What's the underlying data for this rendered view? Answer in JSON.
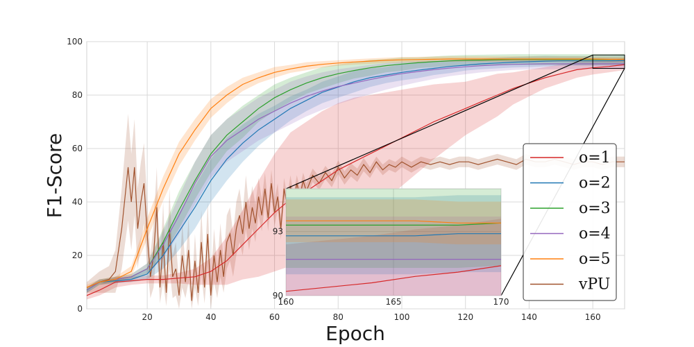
{
  "chart_data": {
    "type": "line",
    "xlabel": "Epoch",
    "ylabel": "F1-Score",
    "xlim": [
      1,
      170
    ],
    "ylim": [
      0,
      100
    ],
    "xticks": [
      20,
      40,
      60,
      80,
      100,
      120,
      140,
      160
    ],
    "yticks": [
      0,
      20,
      40,
      60,
      80,
      100
    ],
    "grid": true,
    "legend_position": "lower-right",
    "series": [
      {
        "name": "o=1",
        "color": "#d62728",
        "x": [
          1,
          5,
          10,
          15,
          20,
          25,
          30,
          35,
          40,
          45,
          50,
          55,
          60,
          65,
          70,
          75,
          80,
          85,
          90,
          95,
          100,
          105,
          110,
          115,
          120,
          125,
          130,
          135,
          140,
          145,
          150,
          155,
          160,
          165,
          170
        ],
        "y": [
          5,
          7,
          10,
          10.5,
          11,
          11,
          11.5,
          12,
          14,
          18,
          24,
          30,
          36,
          41,
          44,
          48,
          52,
          55,
          58,
          61,
          64,
          67,
          70,
          72.5,
          75,
          77.5,
          80,
          82.5,
          84.5,
          86.5,
          88,
          89.5,
          90.2,
          90.7,
          91.4
        ],
        "band": [
          1.5,
          2,
          2,
          1.5,
          1.5,
          1.5,
          2,
          3,
          5,
          9,
          13,
          18,
          22,
          25,
          26,
          26,
          25,
          24,
          22,
          20,
          18,
          16,
          14,
          12,
          10,
          9,
          8,
          6,
          5,
          4,
          3.5,
          3,
          2.5,
          2.2,
          2
        ]
      },
      {
        "name": "o=2",
        "color": "#1f77b4",
        "x": [
          1,
          5,
          10,
          15,
          20,
          25,
          30,
          35,
          40,
          45,
          50,
          55,
          60,
          65,
          70,
          75,
          80,
          85,
          90,
          95,
          100,
          105,
          110,
          115,
          120,
          125,
          130,
          135,
          140,
          145,
          150,
          155,
          160,
          165,
          170
        ],
        "y": [
          7,
          10,
          10.5,
          11,
          13,
          20,
          29,
          38,
          48,
          56,
          62,
          67,
          71,
          75,
          78,
          81,
          83,
          85,
          86.5,
          87.5,
          88.5,
          89.3,
          90,
          90.7,
          91.2,
          91.7,
          92,
          92.3,
          92.5,
          92.7,
          92.8,
          92.8,
          92.8,
          92.8,
          92.9
        ],
        "band": [
          1,
          1,
          1,
          1,
          2,
          5,
          7,
          8,
          8,
          8,
          7,
          6,
          5,
          4.5,
          4,
          4,
          4,
          4,
          3.5,
          3,
          3,
          3,
          2.5,
          2.5,
          2,
          2,
          2,
          2,
          2,
          2,
          1.8,
          1.8,
          1.8,
          1.8,
          1.8
        ]
      },
      {
        "name": "o=3",
        "color": "#2ca02c",
        "x": [
          1,
          5,
          10,
          15,
          20,
          25,
          30,
          35,
          40,
          45,
          50,
          55,
          60,
          65,
          70,
          75,
          80,
          85,
          90,
          95,
          100,
          105,
          110,
          115,
          120,
          125,
          130,
          135,
          140,
          145,
          150,
          155,
          160,
          165,
          170
        ],
        "y": [
          7,
          10,
          11,
          12,
          15,
          25,
          37,
          48,
          58,
          65,
          70,
          75,
          79,
          82,
          84.5,
          86.5,
          88,
          89.2,
          90.2,
          91,
          91.6,
          92.1,
          92.5,
          92.8,
          93,
          93.1,
          93.2,
          93.3,
          93.3,
          93.3,
          93.3,
          93.3,
          93.3,
          93.3,
          93.4
        ],
        "band": [
          1,
          1,
          1,
          1,
          2,
          5,
          7,
          7,
          7,
          6,
          6,
          5,
          5,
          4.5,
          4,
          4,
          3.5,
          3,
          3,
          2.5,
          2.5,
          2,
          2,
          2,
          2,
          2,
          2,
          2,
          2,
          2,
          2,
          2,
          2,
          2,
          2
        ]
      },
      {
        "name": "o=4",
        "color": "#9467bd",
        "x": [
          1,
          5,
          10,
          15,
          20,
          25,
          30,
          35,
          40,
          45,
          50,
          55,
          60,
          65,
          70,
          75,
          80,
          85,
          90,
          95,
          100,
          105,
          110,
          115,
          120,
          125,
          130,
          135,
          140,
          145,
          150,
          155,
          160,
          165,
          170
        ],
        "y": [
          7,
          10,
          11,
          12,
          15,
          24,
          35,
          47,
          57,
          63,
          67,
          71,
          74,
          77,
          79.5,
          81.5,
          83.2,
          84.5,
          85.8,
          87,
          88,
          88.8,
          89.5,
          90.1,
          90.6,
          91,
          91.3,
          91.5,
          91.6,
          91.7,
          91.7,
          91.7,
          91.7,
          91.7,
          91.7
        ],
        "band": [
          1,
          1,
          1,
          1,
          2,
          5,
          7,
          8,
          8,
          8,
          8,
          8,
          8,
          8,
          7.5,
          7,
          6.5,
          6,
          5.5,
          5,
          4.5,
          4,
          3.5,
          3,
          2.8,
          2.5,
          2.3,
          2.1,
          2,
          2,
          2,
          2,
          2,
          2,
          2
        ]
      },
      {
        "name": "o=5",
        "color": "#ff7f0e",
        "x": [
          1,
          5,
          10,
          15,
          20,
          25,
          30,
          35,
          40,
          45,
          50,
          55,
          60,
          65,
          70,
          75,
          80,
          85,
          90,
          95,
          100,
          105,
          110,
          115,
          120,
          125,
          130,
          135,
          140,
          145,
          150,
          155,
          160,
          165,
          170
        ],
        "y": [
          8,
          10,
          11,
          14,
          30,
          45,
          58,
          67,
          75,
          80,
          84,
          86.5,
          88.5,
          89.8,
          90.8,
          91.5,
          92,
          92.4,
          92.7,
          93,
          93.2,
          93.3,
          93.4,
          93.5,
          93.5,
          93.5,
          93.5,
          93.5,
          93.5,
          93.5,
          93.5,
          93.5,
          93.5,
          93.4,
          93.4
        ],
        "band": [
          1,
          1,
          1,
          2,
          4,
          4.5,
          4.5,
          4,
          3.5,
          3,
          2.5,
          2,
          2,
          1.5,
          1.5,
          1.2,
          1,
          1,
          1,
          1,
          1,
          1,
          1,
          1,
          1,
          1,
          1,
          1,
          1,
          1,
          1,
          1,
          1,
          1,
          1
        ]
      },
      {
        "name": "vPU",
        "color": "#a0522d",
        "x": [
          1,
          3,
          5,
          8,
          10,
          12,
          14,
          15,
          16,
          17,
          18,
          19,
          20,
          21,
          22,
          23,
          24,
          25,
          26,
          27,
          28,
          29,
          30,
          31,
          32,
          33,
          34,
          35,
          36,
          37,
          38,
          39,
          40,
          41,
          42,
          43,
          44,
          45,
          46,
          47,
          48,
          49,
          50,
          51,
          52,
          53,
          54,
          55,
          56,
          57,
          58,
          59,
          60,
          61,
          62,
          63,
          64,
          65,
          66,
          67,
          68,
          69,
          70,
          72,
          74,
          76,
          78,
          80,
          82,
          84,
          86,
          88,
          90,
          92,
          94,
          96,
          98,
          100,
          103,
          106,
          109,
          112,
          115,
          118,
          121,
          124,
          127,
          130,
          133,
          136,
          139,
          142,
          145,
          148,
          151,
          154,
          157,
          160,
          163,
          166,
          170
        ],
        "y": [
          8,
          9,
          10,
          11,
          14,
          30,
          53,
          40,
          53,
          30,
          40,
          47,
          28,
          12,
          20,
          38,
          8,
          25,
          6,
          30,
          12,
          15,
          5,
          20,
          10,
          22,
          3,
          18,
          6,
          25,
          8,
          28,
          5,
          20,
          10,
          22,
          12,
          25,
          28,
          20,
          30,
          35,
          28,
          40,
          30,
          38,
          32,
          42,
          35,
          45,
          34,
          47,
          36,
          42,
          30,
          45,
          38,
          46,
          40,
          47,
          42,
          48,
          44,
          50,
          47,
          51,
          48,
          53,
          49,
          52,
          50,
          54,
          51,
          55,
          52,
          54,
          53,
          55,
          53,
          55,
          54,
          55,
          54,
          55,
          55,
          54,
          55,
          56,
          55,
          54,
          56,
          55,
          55,
          56,
          55,
          54,
          55,
          55,
          54,
          55,
          55
        ],
        "band": [
          2,
          3,
          4,
          5,
          8,
          15,
          20,
          18,
          18,
          15,
          15,
          15,
          12,
          8,
          12,
          15,
          6,
          15,
          5,
          15,
          8,
          10,
          5,
          12,
          6,
          12,
          3,
          10,
          5,
          12,
          6,
          12,
          5,
          10,
          6,
          10,
          6,
          10,
          10,
          8,
          10,
          10,
          8,
          10,
          8,
          8,
          7,
          7,
          6,
          6,
          5,
          5,
          5,
          5,
          4,
          4,
          4,
          4,
          3,
          3,
          3,
          3,
          3,
          2.5,
          2.5,
          2.5,
          2.5,
          2.5,
          2.5,
          2.5,
          2.5,
          2.5,
          2,
          2,
          2,
          2,
          2,
          2,
          2,
          2,
          2,
          2,
          2,
          2,
          2,
          2,
          2,
          2,
          2,
          2,
          2,
          2,
          2,
          2,
          2,
          2,
          2,
          2,
          2,
          2,
          2
        ]
      }
    ],
    "inset": {
      "xlim": [
        160,
        170
      ],
      "ylim": [
        90,
        95
      ],
      "xticks": [
        160,
        165,
        170
      ],
      "yticks": [
        90,
        93
      ],
      "series_values": [
        {
          "name": "o=1",
          "x": [
            160,
            162,
            164,
            166,
            168,
            170
          ],
          "y": [
            90.2,
            90.4,
            90.6,
            90.9,
            91.1,
            91.4
          ]
        },
        {
          "name": "o=2",
          "x": [
            160,
            162,
            164,
            166,
            168,
            170
          ],
          "y": [
            92.8,
            92.8,
            92.8,
            92.8,
            92.9,
            92.9
          ]
        },
        {
          "name": "o=3",
          "x": [
            160,
            162,
            164,
            166,
            168,
            170
          ],
          "y": [
            93.3,
            93.3,
            93.3,
            93.3,
            93.3,
            93.4
          ]
        },
        {
          "name": "o=4",
          "x": [
            160,
            162,
            164,
            166,
            168,
            170
          ],
          "y": [
            91.7,
            91.7,
            91.7,
            91.7,
            91.7,
            91.7
          ]
        },
        {
          "name": "o=5",
          "x": [
            160,
            162,
            164,
            166,
            168,
            170
          ],
          "y": [
            93.5,
            93.5,
            93.5,
            93.5,
            93.4,
            93.4
          ]
        }
      ]
    }
  }
}
